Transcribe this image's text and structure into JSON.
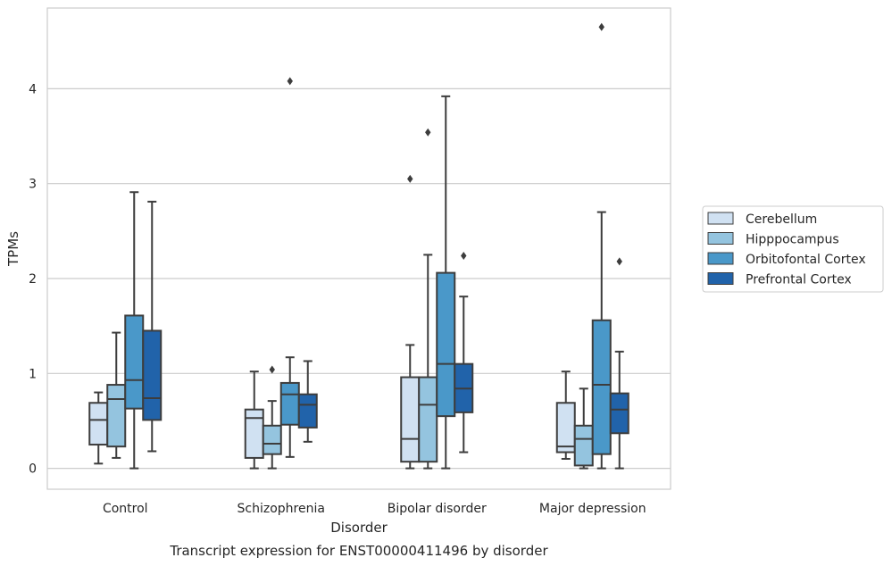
{
  "chart_data": {
    "type": "box",
    "title": "",
    "caption": "Transcript expression for ENST00000411496 by disorder",
    "xlabel": "Disorder",
    "ylabel": "TPMs",
    "ylim": [
      -0.22,
      4.85
    ],
    "yticks": [
      0,
      1,
      2,
      3,
      4
    ],
    "grid": "horizontal",
    "legend_position": "right",
    "categories": [
      "Control",
      "Schizophrenia",
      "Bipolar disorder",
      "Major depression"
    ],
    "series": [
      {
        "name": "Cerebellum",
        "color": "#d0e1f2",
        "boxes": [
          {
            "whislo": 0.05,
            "q1": 0.25,
            "med": 0.51,
            "q3": 0.69,
            "whishi": 0.8,
            "fliers": []
          },
          {
            "whislo": 0.0,
            "q1": 0.11,
            "med": 0.53,
            "q3": 0.62,
            "whishi": 1.02,
            "fliers": []
          },
          {
            "whislo": 0.0,
            "q1": 0.07,
            "med": 0.31,
            "q3": 0.96,
            "whishi": 1.3,
            "fliers": [
              3.05
            ]
          },
          {
            "whislo": 0.1,
            "q1": 0.17,
            "med": 0.23,
            "q3": 0.69,
            "whishi": 1.02,
            "fliers": []
          }
        ]
      },
      {
        "name": "Hipppocampus",
        "color": "#94c4df",
        "boxes": [
          {
            "whislo": 0.11,
            "q1": 0.23,
            "med": 0.73,
            "q3": 0.88,
            "whishi": 1.43,
            "fliers": []
          },
          {
            "whislo": 0.0,
            "q1": 0.15,
            "med": 0.26,
            "q3": 0.45,
            "whishi": 0.71,
            "fliers": [
              1.04
            ]
          },
          {
            "whislo": 0.0,
            "q1": 0.07,
            "med": 0.67,
            "q3": 0.96,
            "whishi": 2.25,
            "fliers": [
              3.54
            ]
          },
          {
            "whislo": 0.0,
            "q1": 0.03,
            "med": 0.31,
            "q3": 0.45,
            "whishi": 0.84,
            "fliers": []
          }
        ]
      },
      {
        "name": "Orbitofontal Cortex",
        "color": "#4a98c9",
        "boxes": [
          {
            "whislo": 0.0,
            "q1": 0.63,
            "med": 0.93,
            "q3": 1.61,
            "whishi": 2.91,
            "fliers": []
          },
          {
            "whislo": 0.12,
            "q1": 0.46,
            "med": 0.78,
            "q3": 0.9,
            "whishi": 1.17,
            "fliers": [
              4.08
            ]
          },
          {
            "whislo": 0.0,
            "q1": 0.55,
            "med": 1.1,
            "q3": 2.06,
            "whishi": 3.92,
            "fliers": []
          },
          {
            "whislo": 0.0,
            "q1": 0.15,
            "med": 0.88,
            "q3": 1.56,
            "whishi": 2.7,
            "fliers": [
              4.65
            ]
          }
        ]
      },
      {
        "name": "Prefrontal Cortex",
        "color": "#2163aa",
        "boxes": [
          {
            "whislo": 0.18,
            "q1": 0.51,
            "med": 0.74,
            "q3": 1.45,
            "whishi": 2.81,
            "fliers": []
          },
          {
            "whislo": 0.28,
            "q1": 0.43,
            "med": 0.67,
            "q3": 0.78,
            "whishi": 1.13,
            "fliers": []
          },
          {
            "whislo": 0.17,
            "q1": 0.59,
            "med": 0.84,
            "q3": 1.1,
            "whishi": 1.81,
            "fliers": [
              2.24
            ]
          },
          {
            "whislo": 0.0,
            "q1": 0.37,
            "med": 0.62,
            "q3": 0.79,
            "whishi": 1.23,
            "fliers": [
              2.18
            ]
          }
        ]
      }
    ]
  }
}
